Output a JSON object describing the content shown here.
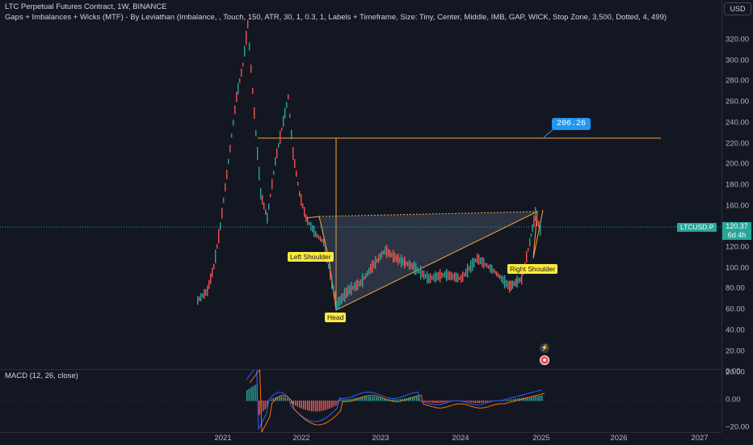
{
  "legend": {
    "title": "LTC Perpetual Futures Contract, 1W, BINANCE",
    "indicator": "Gaps + Imbalances + Wicks (MTF) - By Leviathan (Imbalance, , Touch, 150, ATR, 30, 1, 0.3, 1, Labels + Timeframe, Size: Tiny, Center, Middle, IMB, GAP, WICK, Stop Zone, 3,500, Dotted, 4, 499)"
  },
  "currency_button": "USD",
  "price_axis": [
    "320.00",
    "300.00",
    "280.00",
    "260.00",
    "240.00",
    "220.00",
    "200.00",
    "180.00",
    "160.00",
    "140.00",
    "120.00",
    "100.00",
    "80.00",
    "60.00",
    "40.00",
    "20.00",
    "0.00"
  ],
  "macd_axis": [
    "20.00",
    "0.00",
    "−20.00"
  ],
  "time_axis": [
    {
      "label": "2021"
    },
    {
      "label": "2022"
    },
    {
      "label": "2023"
    },
    {
      "label": "2024"
    },
    {
      "label": "2025"
    },
    {
      "label": "2026"
    },
    {
      "label": "2027"
    }
  ],
  "symbol_tag": "LTCUSD.P",
  "current_price": "120.37",
  "countdown": "6d 4h",
  "target_label": "206.26",
  "annotations": {
    "left_shoulder": "Left Shoulder",
    "head": "Head",
    "right_shoulder": "Right Shoulder"
  },
  "macd_legend": "MACD (12, 26, close)",
  "colors": {
    "background": "#131722",
    "up": "#26a69a",
    "down": "#ef5350",
    "pattern": "#f7a53a",
    "label": "#ffeb3b",
    "target": "#2196f3"
  }
}
